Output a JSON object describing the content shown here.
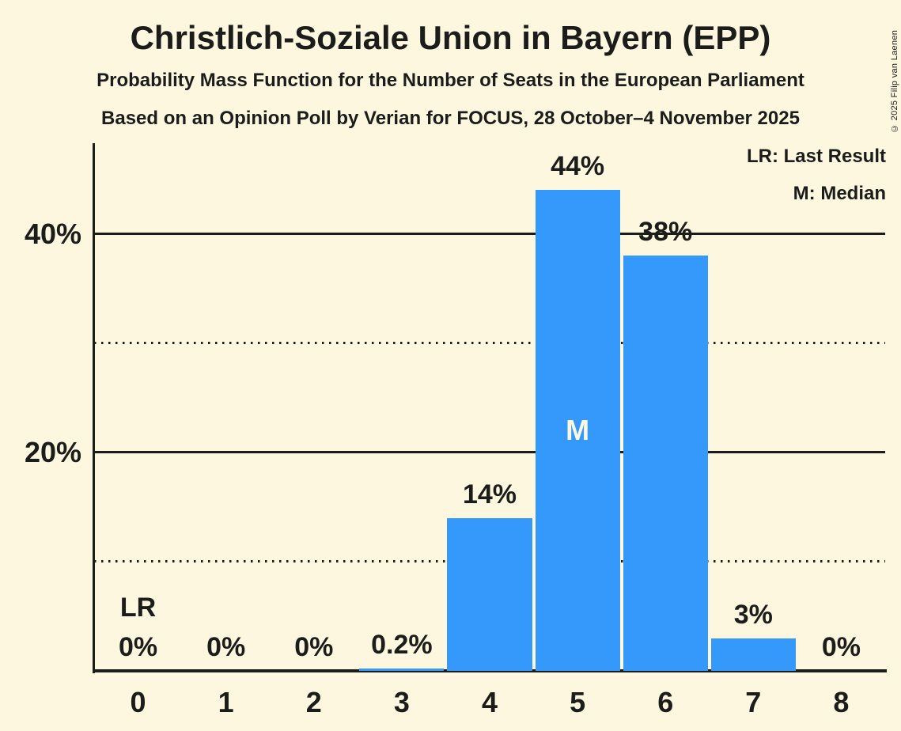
{
  "header": {
    "title": "Christlich-Soziale Union in Bayern (EPP)",
    "subtitle_line1": "Probability Mass Function for the Number of Seats in the European Parliament",
    "subtitle_line2": "Based on an Opinion Poll by Verian for FOCUS, 28 October–4 November 2025"
  },
  "legend": {
    "lr": "LR: Last Result",
    "m": "M: Median"
  },
  "copyright": "© 2025 Filip van Laenen",
  "colors": {
    "background": "#FDF7E0",
    "bar": "#3499FB",
    "text": "#1C1C1A",
    "median_label": "#FDF7E0"
  },
  "chart_data": {
    "type": "bar",
    "title": "Christlich-Soziale Union in Bayern (EPP)",
    "subtitle": "Probability Mass Function for the Number of Seats in the European Parliament",
    "source_line": "Based on an Opinion Poll by Verian for FOCUS, 28 October–4 November 2025",
    "categories": [
      "0",
      "1",
      "2",
      "3",
      "4",
      "5",
      "6",
      "7",
      "8"
    ],
    "values": [
      0,
      0,
      0,
      0.2,
      14,
      44,
      38,
      3,
      0
    ],
    "bar_labels": [
      "0%",
      "0%",
      "0%",
      "0.2%",
      "14%",
      "44%",
      "38%",
      "3%",
      "0%"
    ],
    "xlabel": "",
    "ylabel": "",
    "ylim": [
      0,
      48.3
    ],
    "yticks": [
      {
        "value": 40,
        "label": "40%",
        "style": "solid"
      },
      {
        "value": 30,
        "label": "",
        "style": "dotted"
      },
      {
        "value": 20,
        "label": "20%",
        "style": "solid"
      },
      {
        "value": 10,
        "label": "",
        "style": "dotted"
      }
    ],
    "grid": "horizontal",
    "legend_position": "top-right",
    "annotations": {
      "last_result": {
        "label": "LR",
        "category_index": 0
      },
      "median": {
        "label": "M",
        "category_index": 5
      }
    }
  }
}
